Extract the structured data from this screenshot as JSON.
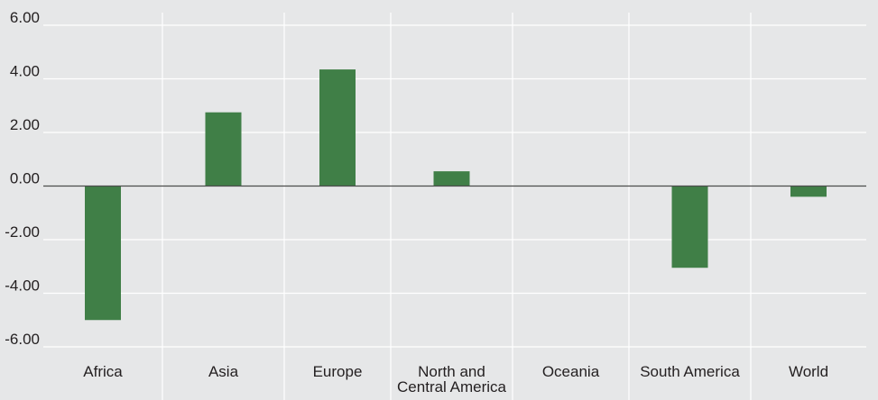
{
  "chart_data": {
    "type": "bar",
    "title": "",
    "xlabel": "",
    "ylabel": "",
    "categories": [
      "Africa",
      "Asia",
      "Europe",
      "North and Central America",
      "Oceania",
      "South America",
      "World"
    ],
    "category_label_lines": [
      [
        "Africa"
      ],
      [
        "Asia"
      ],
      [
        "Europe"
      ],
      [
        "North and",
        "Central America"
      ],
      [
        "Oceania"
      ],
      [
        "South America"
      ],
      [
        "World"
      ]
    ],
    "values": [
      -5.0,
      2.75,
      4.35,
      0.55,
      0.0,
      -3.05,
      -0.4
    ],
    "ylim": [
      -6,
      6
    ],
    "yticks": [
      6,
      4,
      2,
      0,
      -2,
      -4,
      -6
    ],
    "ytick_labels": [
      "6.00",
      "4.00",
      "2.00",
      "0.00",
      "-2.00",
      "-4.00",
      "-6.00"
    ],
    "grid": true,
    "legend": "none",
    "colors": {
      "bar": "#407f47",
      "background": "#e6e7e8",
      "grid": "#ffffff",
      "zero_line": "#4d4d4d",
      "text": "#231f20"
    }
  }
}
